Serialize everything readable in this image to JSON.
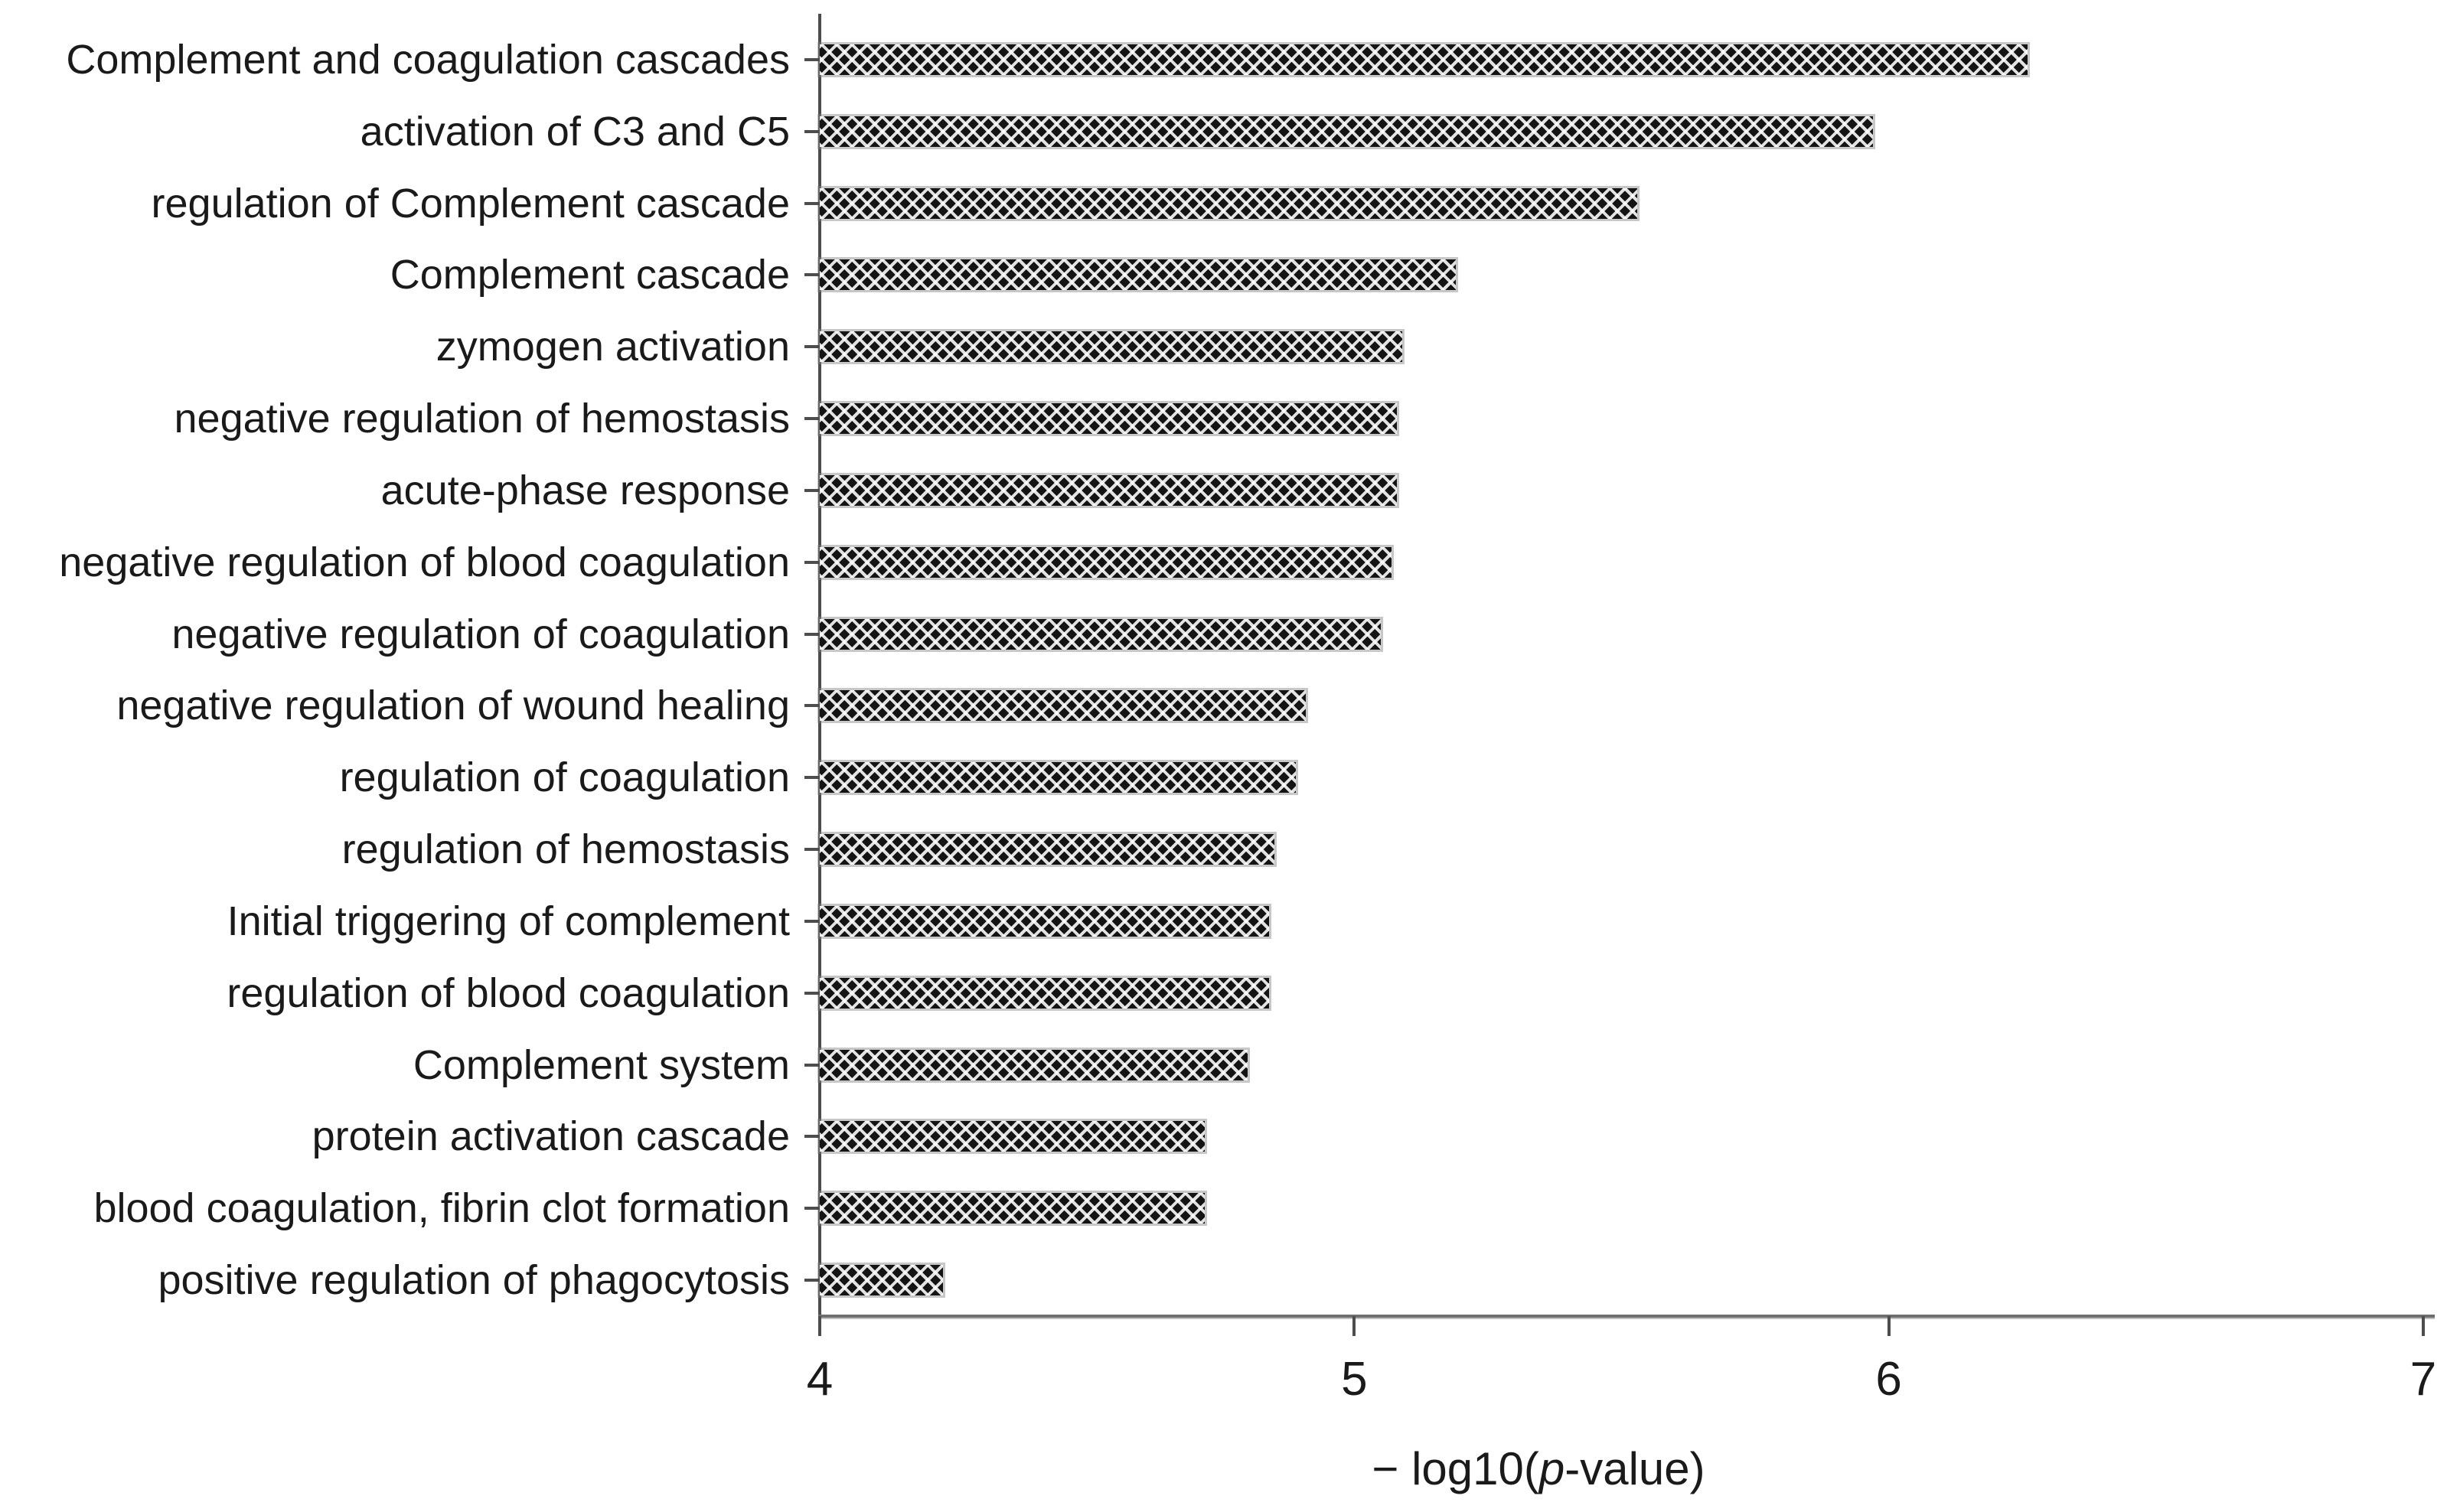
{
  "chart_data": {
    "type": "bar",
    "orientation": "horizontal",
    "title": "",
    "xlabel": "− log10(p-value)",
    "xlabel_parts": {
      "prefix": "− log10(",
      "italic": "p",
      "suffix": "-value)"
    },
    "ylabel": "",
    "xlim": [
      4,
      7
    ],
    "xticks": [
      "4",
      "5",
      "6",
      "7"
    ],
    "grid": false,
    "legend": false,
    "bar_color": "#141414",
    "bar_pattern": "diagonal-crosshatch",
    "background_color": "#ffffff",
    "categories": [
      "Complement and coagulation cascades",
      "activation of C3 and C5",
      "regulation of Complement cascade",
      "Complement cascade",
      "zymogen activation",
      "negative regulation of hemostasis",
      "acute-phase response",
      "negative regulation of blood coagulation",
      "negative regulation of coagulation",
      "negative regulation of wound healing",
      "regulation of coagulation",
      "regulation of hemostasis",
      "Initial triggering of complement",
      "regulation of blood coagulation",
      "Complement system",
      "protein activation cascade",
      "blood coagulation, fibrin clot formation",
      "positive regulation of phagocytosis"
    ],
    "values": [
      6.26,
      5.97,
      5.53,
      5.19,
      5.09,
      5.08,
      5.08,
      5.07,
      5.05,
      4.91,
      4.89,
      4.85,
      4.84,
      4.84,
      4.8,
      4.72,
      4.72,
      4.23
    ]
  }
}
